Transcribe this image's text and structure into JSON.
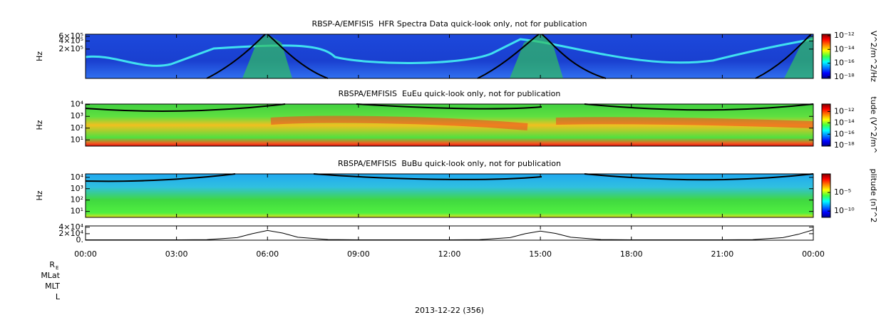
{
  "chart_data": [
    {
      "type": "spectrogram",
      "title": "RBSP-A/EMFISIS  HFR Spectra Data quick-look only, not for publication",
      "ylabel": "Hz",
      "log": true,
      "ylim": [
        16000,
        720000
      ],
      "yticks": [
        {
          "value": 600000,
          "label": "6×10⁵"
        },
        {
          "value": 400000,
          "label": "4×10⁵"
        },
        {
          "value": 200000,
          "label": "2×10⁵"
        }
      ],
      "colorbar": {
        "label": "V^2/m^2/Hz",
        "clim": [
          6e-19,
          1.6e-12
        ],
        "ticks": [
          {
            "value": 1e-12,
            "label": "10⁻¹²"
          },
          {
            "value": 1e-14,
            "label": "10⁻¹⁴"
          },
          {
            "value": 1e-16,
            "label": "10⁻¹⁶"
          },
          {
            "value": 1e-18,
            "label": "10⁻¹⁸"
          }
        ]
      }
    },
    {
      "type": "spectrogram",
      "title": "RBSPA/EMFISIS  EuEu quick-look only, not for publication",
      "ylabel": "Hz",
      "log": true,
      "ylim": [
        3,
        11000
      ],
      "yticks": [
        {
          "value": 10,
          "label": "10¹"
        },
        {
          "value": 100,
          "label": "10²"
        },
        {
          "value": 1000,
          "label": "10³"
        },
        {
          "value": 10000,
          "label": "10⁴"
        }
      ],
      "colorbar": {
        "label": "tude (V^2/m^",
        "clim": [
          8e-19,
          2e-11
        ],
        "ticks": [
          {
            "value": 1e-12,
            "label": "10⁻¹²"
          },
          {
            "value": 1e-14,
            "label": "10⁻¹⁴"
          },
          {
            "value": 1e-16,
            "label": "10⁻¹⁶"
          },
          {
            "value": 1e-18,
            "label": "10⁻¹⁸"
          }
        ]
      }
    },
    {
      "type": "spectrogram",
      "title": "RBSPA/EMFISIS  BuBu quick-look only, not for publication",
      "ylabel": "Hz",
      "log": true,
      "ylim": [
        3,
        20000
      ],
      "yticks": [
        {
          "value": 10,
          "label": "10¹"
        },
        {
          "value": 100,
          "label": "10²"
        },
        {
          "value": 1000,
          "label": "10³"
        },
        {
          "value": 10000,
          "label": "10⁴"
        }
      ],
      "colorbar": {
        "label": "plitude (nT^2",
        "clim": [
          2e-12,
          1
        ],
        "ticks": [
          {
            "value": 1e-05,
            "label": "10⁻⁵"
          },
          {
            "value": 1e-10,
            "label": "10⁻¹⁰"
          }
        ]
      }
    },
    {
      "type": "line",
      "ylim": [
        0,
        44000
      ],
      "color": "#000000",
      "yticks": [
        {
          "value": 40000,
          "label": "4×10⁴"
        },
        {
          "value": 20000,
          "label": "2×10⁴"
        },
        {
          "value": 0,
          "label": "0."
        }
      ],
      "x": [
        0,
        1,
        2,
        3,
        4,
        5,
        5.5,
        6,
        6.5,
        7,
        8,
        9,
        10,
        11,
        12,
        13,
        14,
        14.5,
        15,
        15.5,
        16,
        17,
        18,
        19,
        20,
        21,
        22,
        23,
        23.5,
        24
      ],
      "values": [
        1000,
        1000,
        1000,
        1000,
        1500,
        8000,
        20000,
        30000,
        22000,
        9000,
        2000,
        1000,
        1000,
        1000,
        1000,
        1500,
        8000,
        20000,
        28000,
        21000,
        9000,
        2000,
        1000,
        1000,
        1000,
        1000,
        1500,
        8000,
        18000,
        32000
      ]
    }
  ],
  "time_axis": {
    "xlim": [
      0,
      24
    ],
    "xticks": [
      {
        "value": 0,
        "label": "00:00"
      },
      {
        "value": 3,
        "label": "03:00"
      },
      {
        "value": 6,
        "label": "06:00"
      },
      {
        "value": 9,
        "label": "09:00"
      },
      {
        "value": 12,
        "label": "12:00"
      },
      {
        "value": 15,
        "label": "15:00"
      },
      {
        "value": 18,
        "label": "18:00"
      },
      {
        "value": 21,
        "label": "21:00"
      },
      {
        "value": 24,
        "label": "00:00"
      }
    ],
    "row_labels": [
      "R",
      "MLat",
      "MLT",
      "L"
    ],
    "r_subscript": "E",
    "date": "2013-12-22 (356)"
  }
}
